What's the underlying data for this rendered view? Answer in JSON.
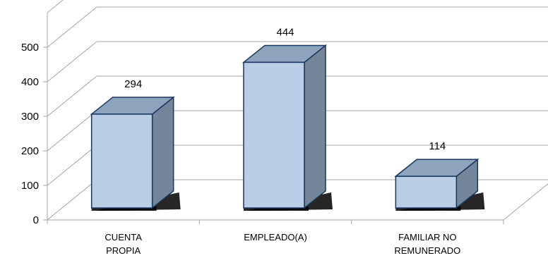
{
  "chart_data": {
    "type": "bar",
    "categories": [
      [
        "CUENTA",
        "PROPIA"
      ],
      [
        "EMPLEADO(A)"
      ],
      [
        "FAMILIAR NO",
        "REMUNERADO"
      ]
    ],
    "values": [
      294,
      444,
      114
    ],
    "data_labels": [
      "294",
      "444",
      "114"
    ],
    "y_ticks": [
      "0",
      "100",
      "200",
      "300",
      "400",
      "500"
    ],
    "ylim": [
      0,
      500
    ],
    "grid": true,
    "three_d": true,
    "title": "",
    "xlabel": "",
    "ylabel": "",
    "colors": {
      "bar_front": "#b9cde5",
      "bar_top": "#8ea3bc",
      "bar_side": "#75869b",
      "bar_edge": "#17375e",
      "grid": "#a6a6a6",
      "shadow": "#000000"
    }
  }
}
